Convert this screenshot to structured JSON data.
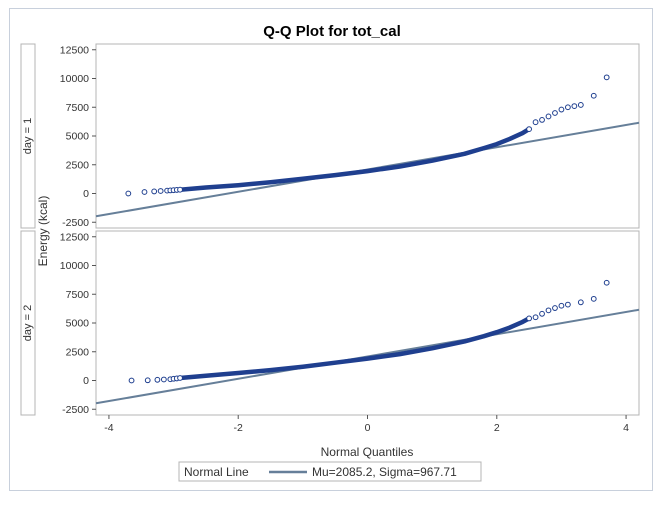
{
  "chart_data": {
    "type": "scatter",
    "title": "Q-Q Plot for tot_cal",
    "xlabel": "Normal Quantiles",
    "ylabel": "Energy (kcal)",
    "xlim": [
      -4.2,
      4.2
    ],
    "ylim": [
      -3000,
      13000
    ],
    "xticks": [
      -4,
      -2,
      0,
      2,
      4
    ],
    "yticks": [
      -2500,
      0,
      2500,
      5000,
      7500,
      10000,
      12500
    ],
    "grid": false,
    "legend": {
      "placement": "bottom",
      "title": "Normal Line",
      "entries": [
        {
          "label": "Mu=2085.2, Sigma=967.71",
          "color": "#667f99"
        }
      ]
    },
    "line": {
      "mu": 2085.2,
      "sigma": 967.71
    },
    "colors": {
      "marker": "#1f3f8f",
      "fitline": "#667f99",
      "panel_border": "#b4b4b4",
      "strip": "#ffffff"
    },
    "panels": [
      {
        "label": "day = 1",
        "points": [
          [
            -3.7,
            0
          ],
          [
            -3.45,
            130
          ],
          [
            -3.3,
            180
          ],
          [
            -3.2,
            220
          ],
          [
            -3.1,
            250
          ],
          [
            -3.05,
            270
          ],
          [
            -3.0,
            290
          ],
          [
            -2.95,
            310
          ],
          [
            -2.9,
            330
          ],
          [
            2.5,
            5600
          ],
          [
            2.6,
            6200
          ],
          [
            2.7,
            6400
          ],
          [
            2.8,
            6700
          ],
          [
            2.9,
            7000
          ],
          [
            3.0,
            7300
          ],
          [
            3.1,
            7500
          ],
          [
            3.2,
            7600
          ],
          [
            3.3,
            7700
          ],
          [
            3.5,
            8500
          ],
          [
            3.7,
            10100
          ]
        ],
        "curve": [
          [
            -2.9,
            330
          ],
          [
            -2.5,
            520
          ],
          [
            -2.0,
            720
          ],
          [
            -1.5,
            980
          ],
          [
            -1.0,
            1280
          ],
          [
            -0.5,
            1600
          ],
          [
            0,
            1950
          ],
          [
            0.5,
            2350
          ],
          [
            1.0,
            2850
          ],
          [
            1.5,
            3450
          ],
          [
            1.8,
            3950
          ],
          [
            2.0,
            4300
          ],
          [
            2.2,
            4750
          ],
          [
            2.4,
            5250
          ],
          [
            2.5,
            5600
          ]
        ]
      },
      {
        "label": "day = 2",
        "points": [
          [
            -3.65,
            0
          ],
          [
            -3.4,
            20
          ],
          [
            -3.25,
            60
          ],
          [
            -3.15,
            90
          ],
          [
            -3.05,
            110
          ],
          [
            -3.0,
            150
          ],
          [
            -2.95,
            180
          ],
          [
            -2.9,
            220
          ],
          [
            2.5,
            5400
          ],
          [
            2.6,
            5500
          ],
          [
            2.7,
            5800
          ],
          [
            2.8,
            6100
          ],
          [
            2.9,
            6300
          ],
          [
            3.0,
            6500
          ],
          [
            3.1,
            6600
          ],
          [
            3.3,
            6800
          ],
          [
            3.5,
            7100
          ],
          [
            3.7,
            8500
          ]
        ],
        "curve": [
          [
            -2.9,
            220
          ],
          [
            -2.5,
            420
          ],
          [
            -2.0,
            650
          ],
          [
            -1.5,
            900
          ],
          [
            -1.0,
            1200
          ],
          [
            -0.5,
            1550
          ],
          [
            0,
            1900
          ],
          [
            0.5,
            2300
          ],
          [
            1.0,
            2800
          ],
          [
            1.5,
            3400
          ],
          [
            1.8,
            3850
          ],
          [
            2.0,
            4200
          ],
          [
            2.2,
            4600
          ],
          [
            2.4,
            5100
          ],
          [
            2.5,
            5400
          ]
        ]
      }
    ]
  }
}
